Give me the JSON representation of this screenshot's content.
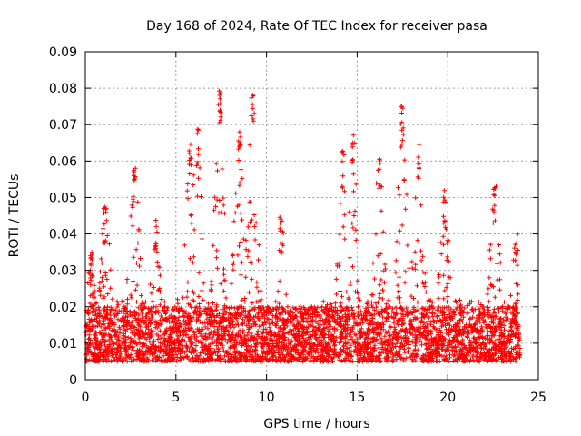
{
  "chart_data": {
    "type": "scatter",
    "title": "Day 168 of 2024, Rate Of TEC Index for receiver pasa",
    "xlabel": "GPS time / hours",
    "ylabel": "ROTI / TECUs",
    "xlim": [
      0,
      25
    ],
    "ylim": [
      0,
      0.09
    ],
    "x_ticks": [
      0,
      5,
      10,
      15,
      20,
      25
    ],
    "x_tick_labels": [
      "0",
      "5",
      "10",
      "15",
      "20",
      "25"
    ],
    "y_ticks": [
      0,
      0.01,
      0.02,
      0.03,
      0.04,
      0.05,
      0.06,
      0.07,
      0.08,
      0.09
    ],
    "y_tick_labels": [
      "0",
      "0.01",
      "0.02",
      "0.03",
      "0.04",
      "0.05",
      "0.06",
      "0.07",
      "0.08",
      "0.09"
    ],
    "grid": true,
    "marker": "plus",
    "color": "#ff0000",
    "x_range_of_data": [
      0,
      24
    ],
    "typical_band": [
      0.005,
      0.02
    ],
    "peaks": [
      {
        "x": 0.3,
        "y": 0.036
      },
      {
        "x": 1.1,
        "y": 0.049
      },
      {
        "x": 2.7,
        "y": 0.059
      },
      {
        "x": 3.9,
        "y": 0.047
      },
      {
        "x": 5.8,
        "y": 0.066
      },
      {
        "x": 6.2,
        "y": 0.069
      },
      {
        "x": 7.4,
        "y": 0.081
      },
      {
        "x": 8.5,
        "y": 0.069
      },
      {
        "x": 9.2,
        "y": 0.08
      },
      {
        "x": 10.8,
        "y": 0.045
      },
      {
        "x": 14.2,
        "y": 0.064
      },
      {
        "x": 14.8,
        "y": 0.068
      },
      {
        "x": 16.2,
        "y": 0.062
      },
      {
        "x": 17.5,
        "y": 0.076
      },
      {
        "x": 18.4,
        "y": 0.066
      },
      {
        "x": 19.8,
        "y": 0.053
      },
      {
        "x": 22.6,
        "y": 0.055
      },
      {
        "x": 23.8,
        "y": 0.044
      }
    ]
  }
}
